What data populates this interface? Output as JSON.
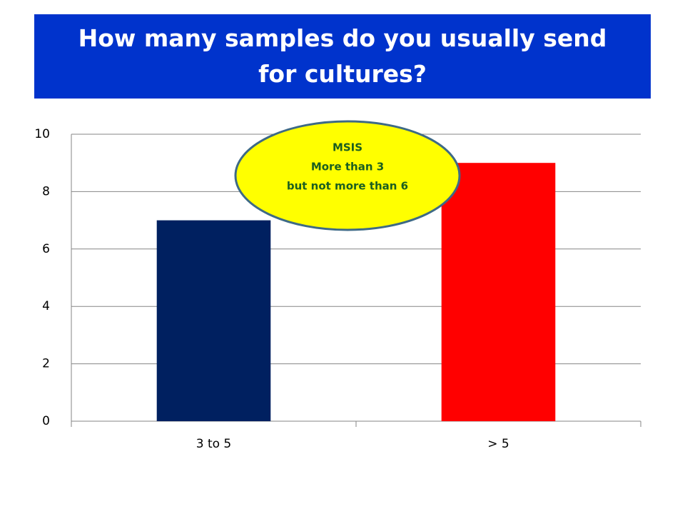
{
  "chart_data": {
    "type": "bar",
    "title": "How many samples do you usually send for cultures?",
    "categories": [
      "3 to 5",
      "> 5"
    ],
    "values": [
      7,
      9
    ],
    "colors": [
      "#002060",
      "#ff0000"
    ],
    "ylim": [
      0,
      10
    ],
    "yticks": [
      0,
      2,
      4,
      6,
      8,
      10
    ],
    "grid": true,
    "annotation": [
      "MSIS",
      "More than 3",
      "but not more than 6"
    ]
  }
}
